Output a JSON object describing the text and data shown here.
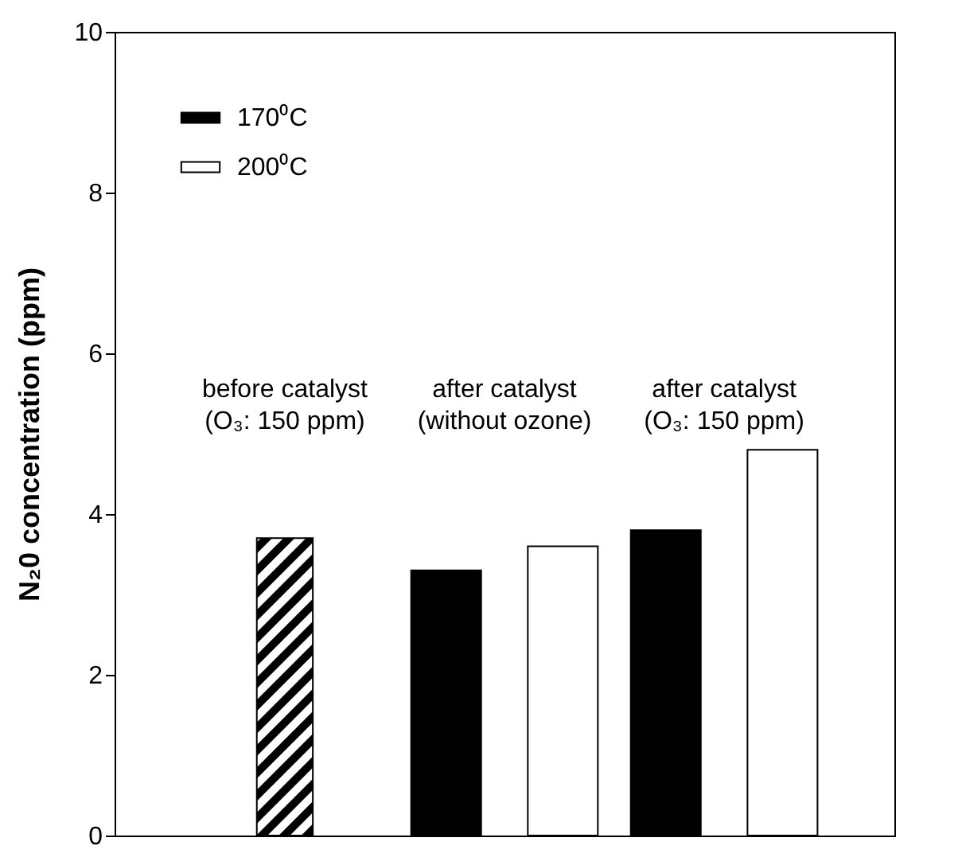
{
  "chart_data": {
    "type": "bar",
    "ylabel": "N₂0 concentration (ppm)",
    "categories": [
      "before catalyst\n(O₃: 150 ppm)",
      "after catalyst\n(without ozone)",
      "after catalyst\n(O₃: 150 ppm)"
    ],
    "series": [
      {
        "name": "170⁰C",
        "color": "#000000",
        "values": [
          null,
          3.3,
          3.8
        ]
      },
      {
        "name": "200⁰C",
        "color": "#ffffff",
        "values": [
          null,
          3.6,
          4.8
        ]
      },
      {
        "color": "#000000",
        "values": [
          3.7,
          null,
          null
        ]
      }
    ],
    "ylim": [
      0,
      10
    ],
    "yticks": [
      0,
      2,
      4,
      6,
      8,
      10
    ],
    "tick_labels": "y",
    "legend": "top left",
    "grid": false
  }
}
